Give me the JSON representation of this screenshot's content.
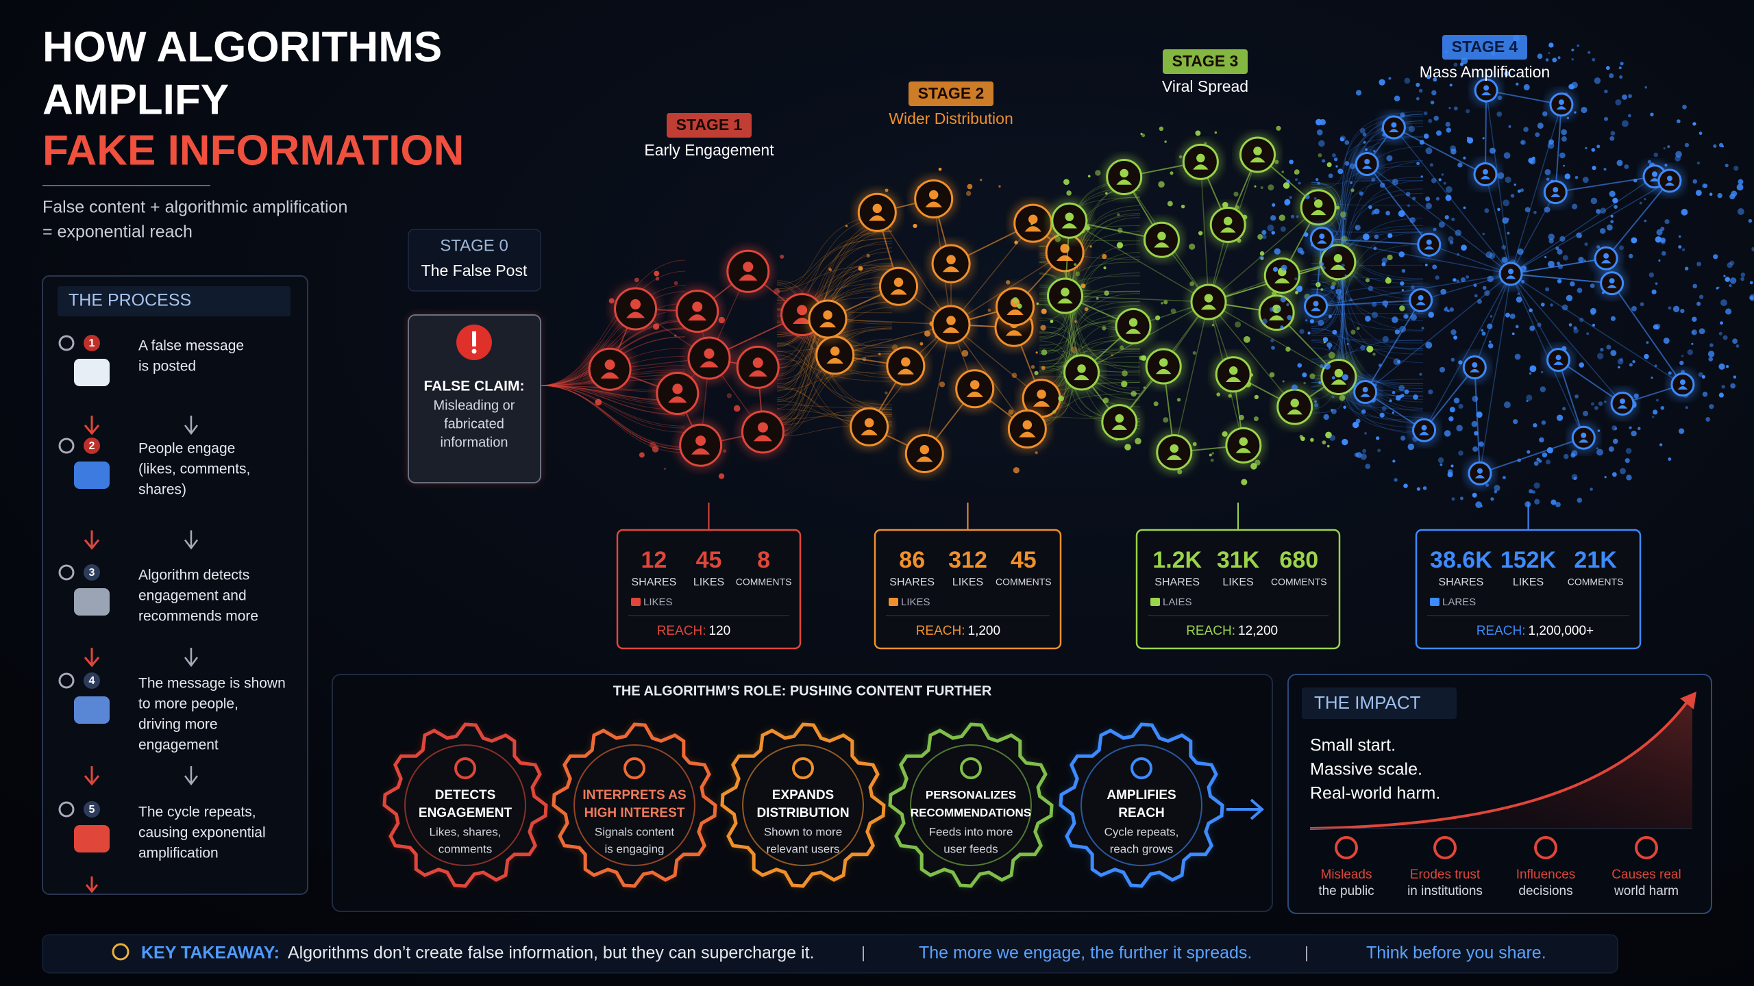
{
  "header": {
    "title_lines": [
      "HOW ALGORITHMS",
      "AMPLIFY"
    ],
    "title_highlight": "FAKE INFORMATION",
    "subtitle_lines": [
      "False content + algorithmic amplification",
      "= exponential reach"
    ]
  },
  "process": {
    "heading": "THE PROCESS",
    "steps": [
      {
        "number": "1",
        "lines": [
          "A false message",
          "is posted"
        ]
      },
      {
        "number": "2",
        "lines": [
          "People engage",
          "(likes, comments,",
          "shares)"
        ]
      },
      {
        "number": "3",
        "lines": [
          "Algorithm detects",
          "engagement and",
          "recommends more"
        ]
      },
      {
        "number": "4",
        "lines": [
          "The message is shown",
          "to more people,",
          "driving more",
          "engagement"
        ]
      },
      {
        "number": "5",
        "lines": [
          "The cycle repeats,",
          "causing exponential",
          "amplification"
        ]
      }
    ]
  },
  "stage0": {
    "stage": "STAGE 0",
    "name": "The False Post",
    "claim": "FALSE CLAIM:",
    "claim_lines": [
      "Misleading or",
      "fabricated",
      "information"
    ]
  },
  "stages": [
    {
      "stage": "STAGE 1",
      "name": "Early Engagement",
      "color": "#e0463a",
      "metrics": [
        {
          "value": "12",
          "label": "SHARES"
        },
        {
          "value": "45",
          "label": "LIKES"
        },
        {
          "value": "8",
          "label": "COMMENTS"
        }
      ],
      "sub": "LIKES",
      "reach_label": "REACH:",
      "reach": "120"
    },
    {
      "stage": "STAGE 2",
      "name": "Wider Distribution",
      "color": "#f0902c",
      "metrics": [
        {
          "value": "86",
          "label": "SHARES"
        },
        {
          "value": "312",
          "label": "LIKES"
        },
        {
          "value": "45",
          "label": "COMMENTS"
        }
      ],
      "sub": "LIKES",
      "reach_label": "REACH:",
      "reach": "1,200"
    },
    {
      "stage": "STAGE 3",
      "name": "Viral Spread",
      "color": "#9ad44a",
      "metrics": [
        {
          "value": "1.2K",
          "label": "SHARES"
        },
        {
          "value": "31K",
          "label": "LIKES"
        },
        {
          "value": "680",
          "label": "COMMENTS"
        }
      ],
      "sub": "LAIES",
      "reach_label": "REACH:",
      "reach": "12,200"
    },
    {
      "stage": "STAGE 4",
      "name": "Mass Amplification",
      "color": "#3d8bff",
      "metrics": [
        {
          "value": "38.6K",
          "label": "SHARES"
        },
        {
          "value": "152K",
          "label": "LIKES"
        },
        {
          "value": "21K",
          "label": "COMMENTS"
        }
      ],
      "sub": "LARES",
      "reach_label": "REACH:",
      "reach": "1,200,000+"
    }
  ],
  "algorithm": {
    "heading": "THE ALGORITHM’S ROLE: PUSHING CONTENT FURTHER",
    "gears": [
      {
        "title_lines": [
          "DETECTS",
          "ENGAGEMENT"
        ],
        "desc_lines": [
          "Likes, shares,",
          "comments"
        ],
        "color": "#e0463a"
      },
      {
        "title_lines": [
          "INTERPRETS AS",
          "HIGH INTEREST"
        ],
        "desc_lines": [
          "Signals content",
          "is engaging"
        ],
        "color": "#ee6a34"
      },
      {
        "title_lines": [
          "EXPANDS",
          "DISTRIBUTION"
        ],
        "desc_lines": [
          "Shown to more",
          "relevant users"
        ],
        "color": "#f0902c"
      },
      {
        "title_lines": [
          "PERSONALIZES",
          "RECOMMENDATIONS"
        ],
        "desc_lines": [
          "Feeds into more",
          "user feeds"
        ],
        "color": "#7fbf4a"
      },
      {
        "title_lines": [
          "AMPLIFIES",
          "REACH"
        ],
        "desc_lines": [
          "Cycle repeats,",
          "reach grows"
        ],
        "color": "#3d8bff"
      }
    ]
  },
  "impact": {
    "heading": "THE IMPACT",
    "lines": [
      "Small start.",
      "Massive scale.",
      "Real-world harm."
    ],
    "items": [
      {
        "lines": [
          "Misleads",
          "the public"
        ]
      },
      {
        "lines": [
          "Erodes trust",
          "in institutions"
        ]
      },
      {
        "lines": [
          "Influences",
          "decisions"
        ]
      },
      {
        "lines": [
          "Causes real",
          "world harm"
        ]
      }
    ]
  },
  "takeaway": {
    "label": "KEY TAKEAWAY:",
    "text1": "Algorithms don’t create false information, but they can supercharge it.",
    "text2": "The more we engage, the further it spreads.",
    "text3": "Think before you share."
  }
}
